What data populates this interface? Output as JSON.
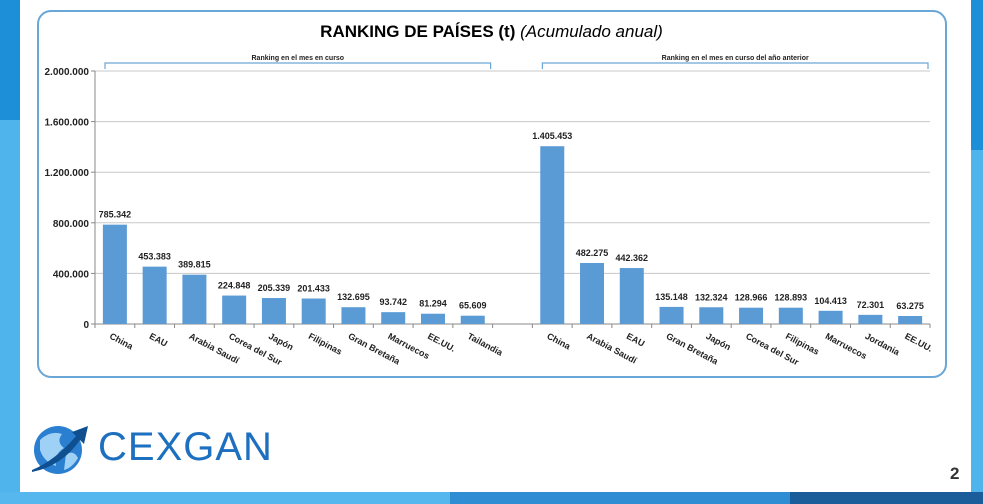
{
  "slide": {
    "title_bold": "RANKING DE PAÍSES (t)",
    "title_italic": "(Acumulado anual)",
    "logo_text": "CEXGAN",
    "page_number": "2",
    "colors": {
      "bar": "#5b9bd5",
      "frame": "#6aa6d6",
      "brand": "#1d6fbf"
    }
  },
  "chart_data": {
    "type": "bar",
    "title": "RANKING DE PAÍSES (t) (Acumulado anual)",
    "ylim": [
      0,
      2000000
    ],
    "yticks": [
      "0",
      "400.000",
      "800.000",
      "1.200.000",
      "1.600.000",
      "2.000.000"
    ],
    "ytick_values": [
      0,
      400000,
      800000,
      1200000,
      1600000,
      2000000
    ],
    "groups": [
      {
        "name": "Ranking en el mes en curso",
        "categories": [
          "China",
          "EAU",
          "Arabia Saudí",
          "Corea del Sur",
          "Japón",
          "Filipinas",
          "Gran Bretaña",
          "Marruecos",
          "EE.UU.",
          "Tailandia"
        ],
        "values": [
          785342,
          453383,
          389815,
          224848,
          205339,
          201433,
          132695,
          93742,
          81294,
          65609
        ],
        "labels": [
          "785.342",
          "453.383",
          "389.815",
          "224.848",
          "205.339",
          "201.433",
          "132.695",
          "93.742",
          "81.294",
          "65.609"
        ]
      },
      {
        "name": "Ranking en el mes en curso del año anterior",
        "categories": [
          "China",
          "Arabia Saudí",
          "EAU",
          "Gran Bretaña",
          "Japón",
          "Corea del Sur",
          "Filipinas",
          "Marruecos",
          "Jordania",
          "EE.UU."
        ],
        "values": [
          1405453,
          482275,
          442362,
          135148,
          132324,
          128966,
          128893,
          104413,
          72301,
          63275
        ],
        "labels": [
          "1.405.453",
          "482.275",
          "442.362",
          "135.148",
          "132.324",
          "128.966",
          "128.893",
          "104.413",
          "72.301",
          "63.275"
        ]
      }
    ]
  }
}
